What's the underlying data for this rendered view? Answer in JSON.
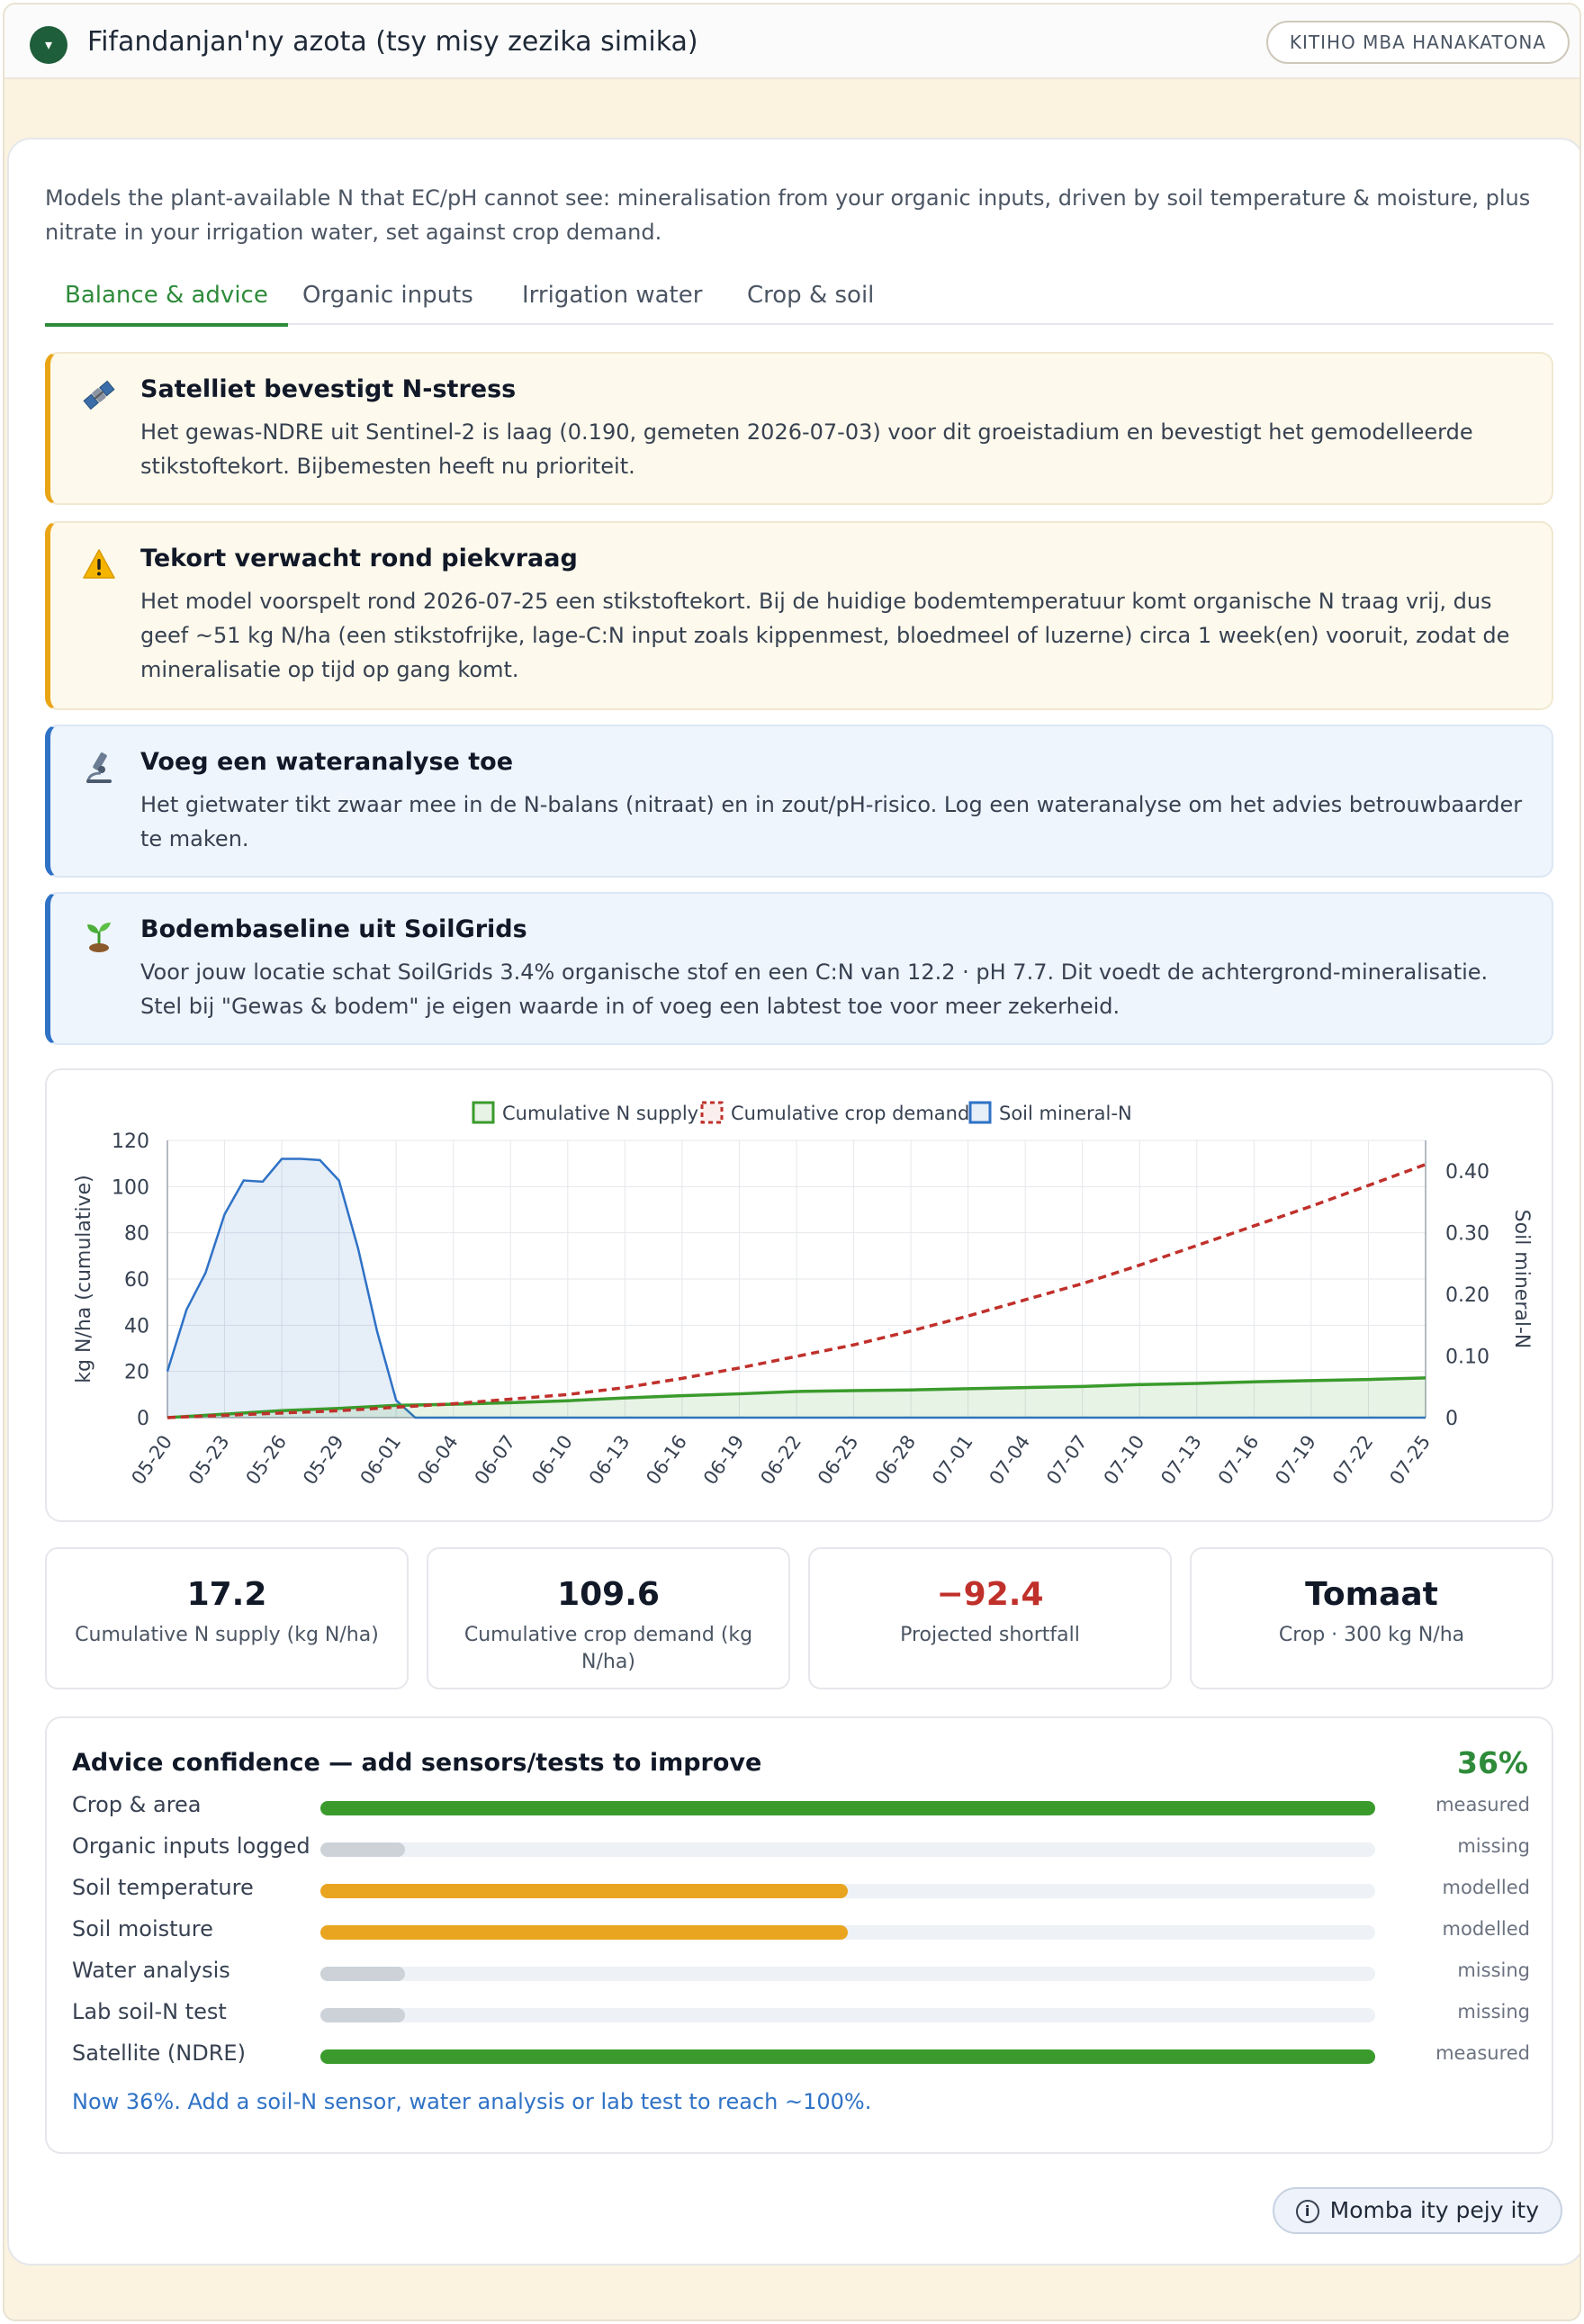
{
  "header": {
    "title": "Fifandanjan'ny azota (tsy misy zezika simika)",
    "toggle_icon": "▾",
    "expert_button": "KITIHO MBA HANAKATONA"
  },
  "panel": {
    "description": "Models the plant-available N that EC/pH cannot see: mineralisation from your organic inputs, driven by soil temperature & moisture, plus nitrate in your irrigation water, set against crop demand.",
    "tabs": [
      {
        "label": "Balance & advice",
        "active": true
      },
      {
        "label": "Organic inputs",
        "active": false
      },
      {
        "label": "Irrigation water",
        "active": false
      },
      {
        "label": "Crop & soil",
        "active": false
      }
    ]
  },
  "alerts": [
    {
      "type": "warn",
      "icon": "satellite-icon",
      "title": "Satelliet bevestigt N-stress",
      "text": "Het gewas-NDRE uit Sentinel-2 is laag (0.190, gemeten 2026-07-03) voor dit groeistadium en bevestigt het gemodelleerde stikstoftekort. Bijbemesten heeft nu prioriteit."
    },
    {
      "type": "warn",
      "icon": "warning-icon",
      "title": "Tekort verwacht rond piekvraag",
      "text": "Het model voorspelt rond 2026-07-25 een stikstoftekort. Bij de huidige bodemtemperatuur komt organische N traag vrij, dus geef ~51 kg N/ha (een stikstofrijke, lage-C:N input zoals kippenmest, bloedmeel of luzerne) circa 1 week(en) vooruit, zodat de mineralisatie op tijd op gang komt."
    },
    {
      "type": "info",
      "icon": "microscope-icon",
      "title": "Voeg een wateranalyse toe",
      "text": "Het gietwater tikt zwaar mee in de N-balans (nitraat) en in zout/pH-risico. Log een wateranalyse om het advies betrouwbaarder te maken."
    },
    {
      "type": "info",
      "icon": "seedling-icon",
      "title": "Bodembaseline uit SoilGrids",
      "text": "Voor jouw locatie schat SoilGrids 3.4% organische stof en een C:N van 12.2 · pH 7.7. Dit voedt de achtergrond-mineralisatie. Stel bij \"Gewas & bodem\" je eigen waarde in of voeg een labtest toe voor meer zekerheid."
    }
  ],
  "chart_data": {
    "type": "line",
    "legend": [
      "Cumulative N supply",
      "Cumulative crop demand",
      "Soil mineral-N"
    ],
    "legend_position": "top-center",
    "ylabel": "kg N/ha (cumulative)",
    "y2label": "Soil mineral-N",
    "ylim": [
      0,
      120
    ],
    "y2lim": [
      0,
      0.45
    ],
    "yticks": [
      "0",
      "20",
      "40",
      "60",
      "80",
      "100",
      "120"
    ],
    "y2ticks": [
      "0",
      "0.10",
      "0.20",
      "0.30",
      "0.40"
    ],
    "x_ticks": [
      "05-20",
      "05-23",
      "05-26",
      "05-29",
      "06-01",
      "06-04",
      "06-07",
      "06-10",
      "06-13",
      "06-16",
      "06-19",
      "06-22",
      "06-25",
      "06-28",
      "07-01",
      "07-04",
      "07-07",
      "07-10",
      "07-13",
      "07-16",
      "07-19",
      "07-22",
      "07-25"
    ],
    "grid": true,
    "series": [
      {
        "name": "Cumulative N supply",
        "color": "#3a9b2c",
        "style": "solid",
        "axis": "left",
        "points": [
          [
            0,
            0
          ],
          [
            3,
            1.5
          ],
          [
            6,
            3
          ],
          [
            9,
            4
          ],
          [
            12,
            5.3
          ],
          [
            15,
            5.8
          ],
          [
            18,
            6.5
          ],
          [
            21,
            7.3
          ],
          [
            24,
            8.5
          ],
          [
            27,
            9.5
          ],
          [
            30,
            10.3
          ],
          [
            33,
            11.3
          ],
          [
            36,
            11.7
          ],
          [
            39,
            12
          ],
          [
            42,
            12.5
          ],
          [
            45,
            13
          ],
          [
            48,
            13.5
          ],
          [
            51,
            14.3
          ],
          [
            54,
            14.8
          ],
          [
            57,
            15.5
          ],
          [
            60,
            16
          ],
          [
            63,
            16.5
          ],
          [
            66,
            17.2
          ]
        ]
      },
      {
        "name": "Cumulative crop demand",
        "color": "#c0302b",
        "style": "dashed",
        "axis": "left",
        "points": [
          [
            0,
            0
          ],
          [
            3,
            1
          ],
          [
            6,
            2
          ],
          [
            9,
            3
          ],
          [
            12,
            4.5
          ],
          [
            15,
            6
          ],
          [
            18,
            8
          ],
          [
            21,
            10
          ],
          [
            24,
            13
          ],
          [
            27,
            17
          ],
          [
            30,
            21.5
          ],
          [
            33,
            26.5
          ],
          [
            36,
            31.5
          ],
          [
            39,
            37.5
          ],
          [
            42,
            44
          ],
          [
            45,
            51
          ],
          [
            48,
            58
          ],
          [
            51,
            66
          ],
          [
            54,
            74.5
          ],
          [
            57,
            83
          ],
          [
            60,
            91.5
          ],
          [
            63,
            100.5
          ],
          [
            66,
            109.6
          ]
        ]
      },
      {
        "name": "Soil mineral-N",
        "color": "#2f72c6",
        "style": "solid",
        "axis": "right",
        "points": [
          [
            0,
            0.075
          ],
          [
            1,
            0.175
          ],
          [
            2,
            0.235
          ],
          [
            3,
            0.33
          ],
          [
            4,
            0.385
          ],
          [
            5,
            0.383
          ],
          [
            6,
            0.42
          ],
          [
            7,
            0.42
          ],
          [
            8,
            0.418
          ],
          [
            9,
            0.385
          ],
          [
            10,
            0.275
          ],
          [
            11,
            0.14
          ],
          [
            12,
            0.028
          ],
          [
            13,
            0
          ],
          [
            66,
            0
          ]
        ]
      }
    ]
  },
  "stats": [
    {
      "value": "17.2",
      "label": "Cumulative N supply (kg N/ha)",
      "color": "#111827"
    },
    {
      "value": "109.6",
      "label": "Cumulative crop demand (kg N/ha)",
      "color": "#111827"
    },
    {
      "value": "−92.4",
      "label": "Projected shortfall",
      "color": "#c0302b"
    },
    {
      "value": "Tomaat",
      "label": "Crop · 300 kg N/ha",
      "color": "#111827"
    }
  ],
  "confidence": {
    "title": "Advice confidence — add sensors/tests to improve",
    "percent": "36%",
    "rows": [
      {
        "label": "Crop & area",
        "status": "measured",
        "level": 1.0,
        "color": "#3a9b2c"
      },
      {
        "label": "Organic inputs logged",
        "status": "missing",
        "level": 0.08,
        "color": "#cdd2d9"
      },
      {
        "label": "Soil temperature",
        "status": "modelled",
        "level": 0.5,
        "color": "#e9a520"
      },
      {
        "label": "Soil moisture",
        "status": "modelled",
        "level": 0.5,
        "color": "#e9a520"
      },
      {
        "label": "Water analysis",
        "status": "missing",
        "level": 0.08,
        "color": "#cdd2d9"
      },
      {
        "label": "Lab soil-N test",
        "status": "missing",
        "level": 0.08,
        "color": "#cdd2d9"
      },
      {
        "label": "Satellite (NDRE)",
        "status": "measured",
        "level": 1.0,
        "color": "#3a9b2c"
      }
    ],
    "note": "Now 36%. Add a soil-N sensor, water analysis or lab test to reach ~100%."
  },
  "about_button": {
    "icon": "info-icon",
    "label": "Momba ity pejy ity"
  }
}
